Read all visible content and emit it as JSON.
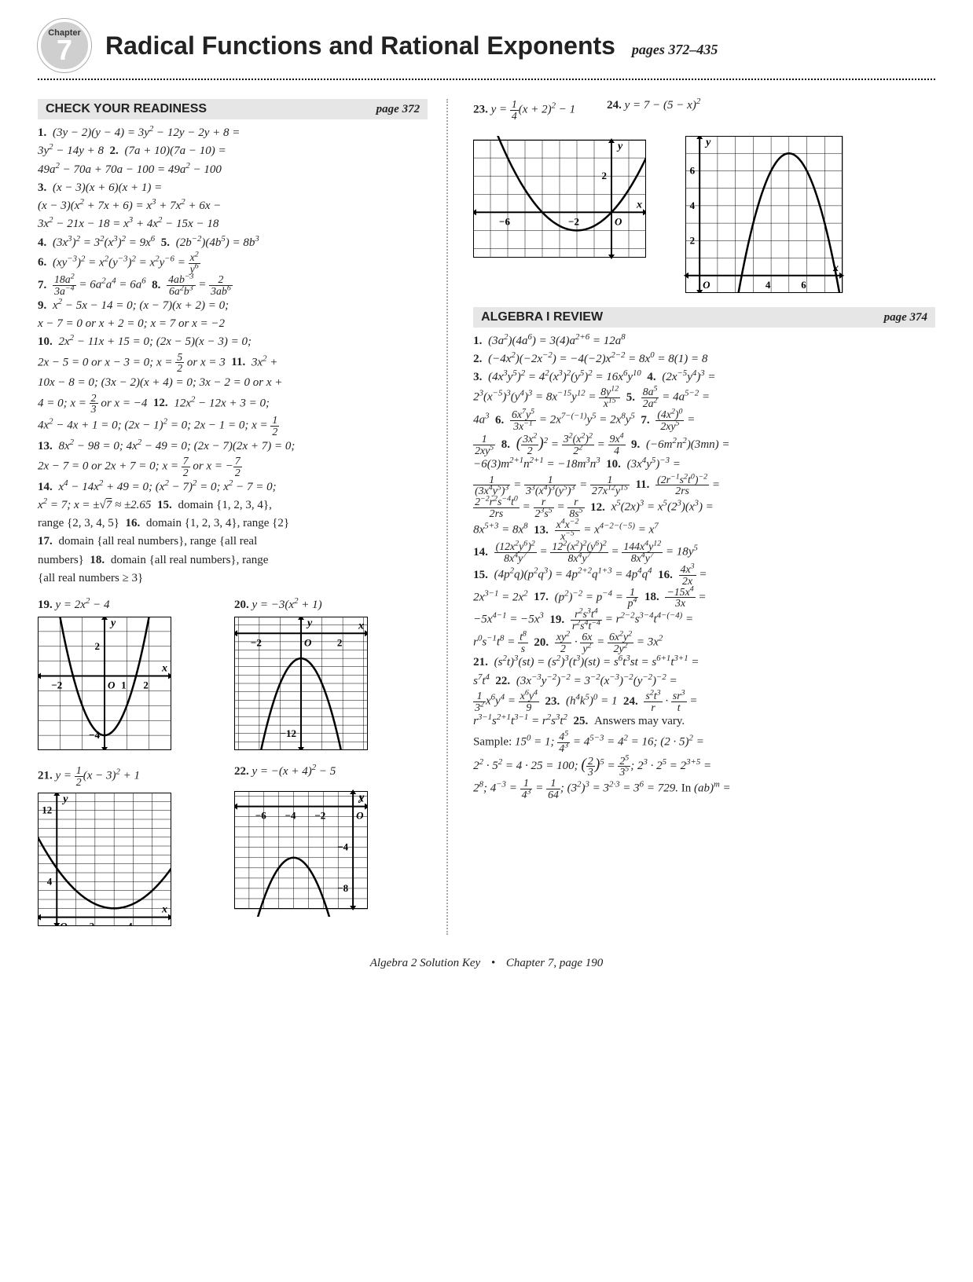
{
  "header": {
    "chapter_label": "Chapter",
    "chapter_number": "7",
    "title": "Radical Functions and Rational Exponents",
    "pages": "pages 372–435"
  },
  "sections": {
    "check_readiness": {
      "name": "CHECK YOUR READINESS",
      "page": "page 372"
    },
    "algebra_review": {
      "name": "ALGEBRA I REVIEW",
      "page": "page 374"
    }
  },
  "left_math": {
    "line1": "1. (3y − 2)(y − 4) = 3y² − 12y − 2y + 8 =",
    "line2": "3y² − 14y + 8   2. (7a + 10)(7a − 10) =",
    "line3": "49a² − 70a + 70a − 100 = 49a² − 100",
    "line4": "3. (x − 3)(x + 6)(x + 1) =",
    "line5": "(x − 3)(x² + 7x + 6) = x³ + 7x² + 6x −",
    "line6": "3x² − 21x − 18 = x³ + 4x² − 15x − 18",
    "line7": "4. (3x³)² = 3²(x³)² = 9x⁶   5. (2b⁻²)(4b⁵) = 8b³",
    "nine": "9. x² − 5x − 14 = 0; (x − 7)(x + 2) = 0;",
    "nineb": "x − 7 = 0 or x + 2 = 0; x = 7 or x = −2",
    "ten": "10. 2x² − 11x + 15 = 0; (2x − 5)(x − 3) = 0;",
    "tenb_a": "2x − 5 = 0 or x − 3 = 0; x = ",
    "tenb_b": " or x = 3   ",
    "tenb_c": "11.",
    "tenb_d": " 3x² +",
    "elev": "10x − 8 = 0; (3x − 2)(x + 4) = 0; 3x − 2 = 0 or x +",
    "elevb_a": "4 = 0; x = ",
    "elevb_b": " or x = −4   ",
    "elevb_c": "12.",
    "elevb_d": " 12x² − 12x + 3 = 0;",
    "twlv_a": "4x² − 4x + 1 = 0; (2x − 1)² = 0; 2x − 1 = 0; x = ",
    "thirt": "13. 8x² − 98 = 0; 4x² − 49 = 0; (2x − 7)(2x + 7) = 0;",
    "thirtb_a": "2x − 7 = 0 or 2x + 7 = 0; x = ",
    "thirtb_b": " or x = −",
    "fourt": "14. x⁴ − 14x² + 49 = 0; (x² − 7)² = 0; x² − 7 = 0;",
    "fourtb": "x² = 7; x = ±√7 ≈ ±2.65   15. domain {1, 2, 3, 4},",
    "fift": "range {2, 3, 4, 5}   16. domain {1, 2, 3, 4}, range {2}",
    "sevt": "17. domain {all real numbers}, range {all real",
    "sevtb": "numbers}   18. domain {all real numbers}, range",
    "sevtc": "{all real numbers ≥ 3}"
  },
  "graphs": {
    "g19": {
      "label": "19.",
      "eq": "y = 2x² − 4",
      "xlabels": [
        "−2",
        "O",
        "1",
        "2"
      ],
      "ylabels": [
        "2",
        "−4"
      ],
      "axis_y": "y",
      "axis_x": "x",
      "vertex": [
        0,
        -4
      ],
      "a": 2,
      "xrange": [
        -3,
        3
      ],
      "yrange": [
        -5,
        4
      ],
      "flip": false
    },
    "g20": {
      "label": "20.",
      "eq": "y = −3(x² + 1)",
      "xlabels": [
        "−2",
        "O",
        "2"
      ],
      "ylabels": [
        "−12"
      ],
      "axis_y": "y",
      "axis_x": "x",
      "vertex": [
        0,
        -3
      ],
      "a": -3,
      "xrange": [
        -3.2,
        3.2
      ],
      "yrange": [
        -14,
        2
      ],
      "flip": true
    },
    "g21": {
      "label": "21.",
      "eq_pre": "y = ",
      "eq_post": "(x − 3)² + 1",
      "xlabels": [
        "O",
        "2",
        "4"
      ],
      "ylabels": [
        "12",
        "4"
      ],
      "axis_y": "y",
      "axis_x": "x",
      "vertex": [
        3,
        1
      ],
      "a": 0.5,
      "xrange": [
        -1,
        6
      ],
      "yrange": [
        -1,
        14
      ],
      "flip": false
    },
    "g22": {
      "label": "22.",
      "eq": "y = −(x + 4)² − 5",
      "xlabels": [
        "−6",
        "−4",
        "−2",
        "O"
      ],
      "ylabels": [
        "−4",
        "−8"
      ],
      "axis_y": "y",
      "axis_x": "x",
      "vertex": [
        -4,
        -5
      ],
      "a": -1,
      "xrange": [
        -8,
        1
      ],
      "yrange": [
        -10,
        1.5
      ],
      "flip": true
    },
    "g23": {
      "label": "23.",
      "eq_pre": "y = ",
      "eq_post": "(x + 2)² − 1",
      "xlabels": [
        "−6",
        "−2",
        "O"
      ],
      "ylabels": [
        "2"
      ],
      "axis_y": "y",
      "axis_x": "x",
      "vertex": [
        -2,
        -1
      ],
      "a": 0.25,
      "xrange": [
        -8,
        2
      ],
      "yrange": [
        -2.5,
        4
      ],
      "flip": false
    },
    "g24": {
      "label": "24.",
      "eq": "y = 7 − (5 − x)²",
      "xlabels": [
        "O",
        "4",
        "6"
      ],
      "ylabels": [
        "6",
        "4",
        "2"
      ],
      "axis_y": "y",
      "axis_x": "x",
      "vertex": [
        5,
        7
      ],
      "a": -1,
      "xrange": [
        -0.8,
        8
      ],
      "yrange": [
        -1,
        8
      ],
      "flip": true
    }
  },
  "right_math": {
    "l1": "1. (3a²)(4a⁶) = 3(4)a²⁺⁶ = 12a⁸",
    "l2": "2. (−4x²)(−2x⁻²) = −4(−2)x²⁻² = 8x⁰ = 8(1) = 8",
    "l3": "3. (4x³y⁵)² = 4²(x³)²(y⁵)² = 16x⁶y¹⁰   4. (2x⁻⁵y⁴)³ =",
    "l5": "4a³   ",
    "l9": "−6(3)m²⁺¹n²⁺¹ = −18m³n³   10. (3x⁴y⁵)⁻³ =",
    "l12": "8x⁵⁺³ = 8x⁸   ",
    "l15": "15. (4p²q)(p²q³) = 4p²⁺²q¹⁺³ = 4p⁴q⁴   ",
    "l17": "2x³⁻¹ = 2x²   17. (p²)⁻² = p⁻⁴ = ",
    "l19": "−5x⁴⁻¹ = −5x³   ",
    "l21": "21. (s²t)³(st) = (s²)³(t³)(st) = s⁶t³st = s⁶⁺¹t³⁺¹ =",
    "l22": "s⁷t⁴   22. (3x⁻³y⁻²)⁻² = 3⁻²(x⁻³)⁻²(y⁻²)⁻² =",
    "l24": "r³⁻¹s²⁺¹t³⁻¹ = r²s³t²   25. Answers may vary.",
    "l25": "Sample: 15⁰ = 1; ",
    "l25b": " = 4⁵⁻³ = 4² = 16; (2 · 5)² =",
    "l26": "2² · 5² = 4 · 25 = 100; ",
    "l26c": "; 2³ · 2⁵ = 2³⁺⁵ =",
    "l27": "2⁸; 4⁻³ = ",
    "l27b": "; (3²)³ = 3²·³ = 3⁶ = 729. In (ab)ᵐ ="
  },
  "footer": {
    "left": "Algebra 2 Solution Key",
    "right": "Chapter 7, page 190"
  },
  "colors": {
    "bg": "#ffffff",
    "grid": "#333",
    "curve": "#000",
    "section_bg": "#e6e6e6"
  }
}
